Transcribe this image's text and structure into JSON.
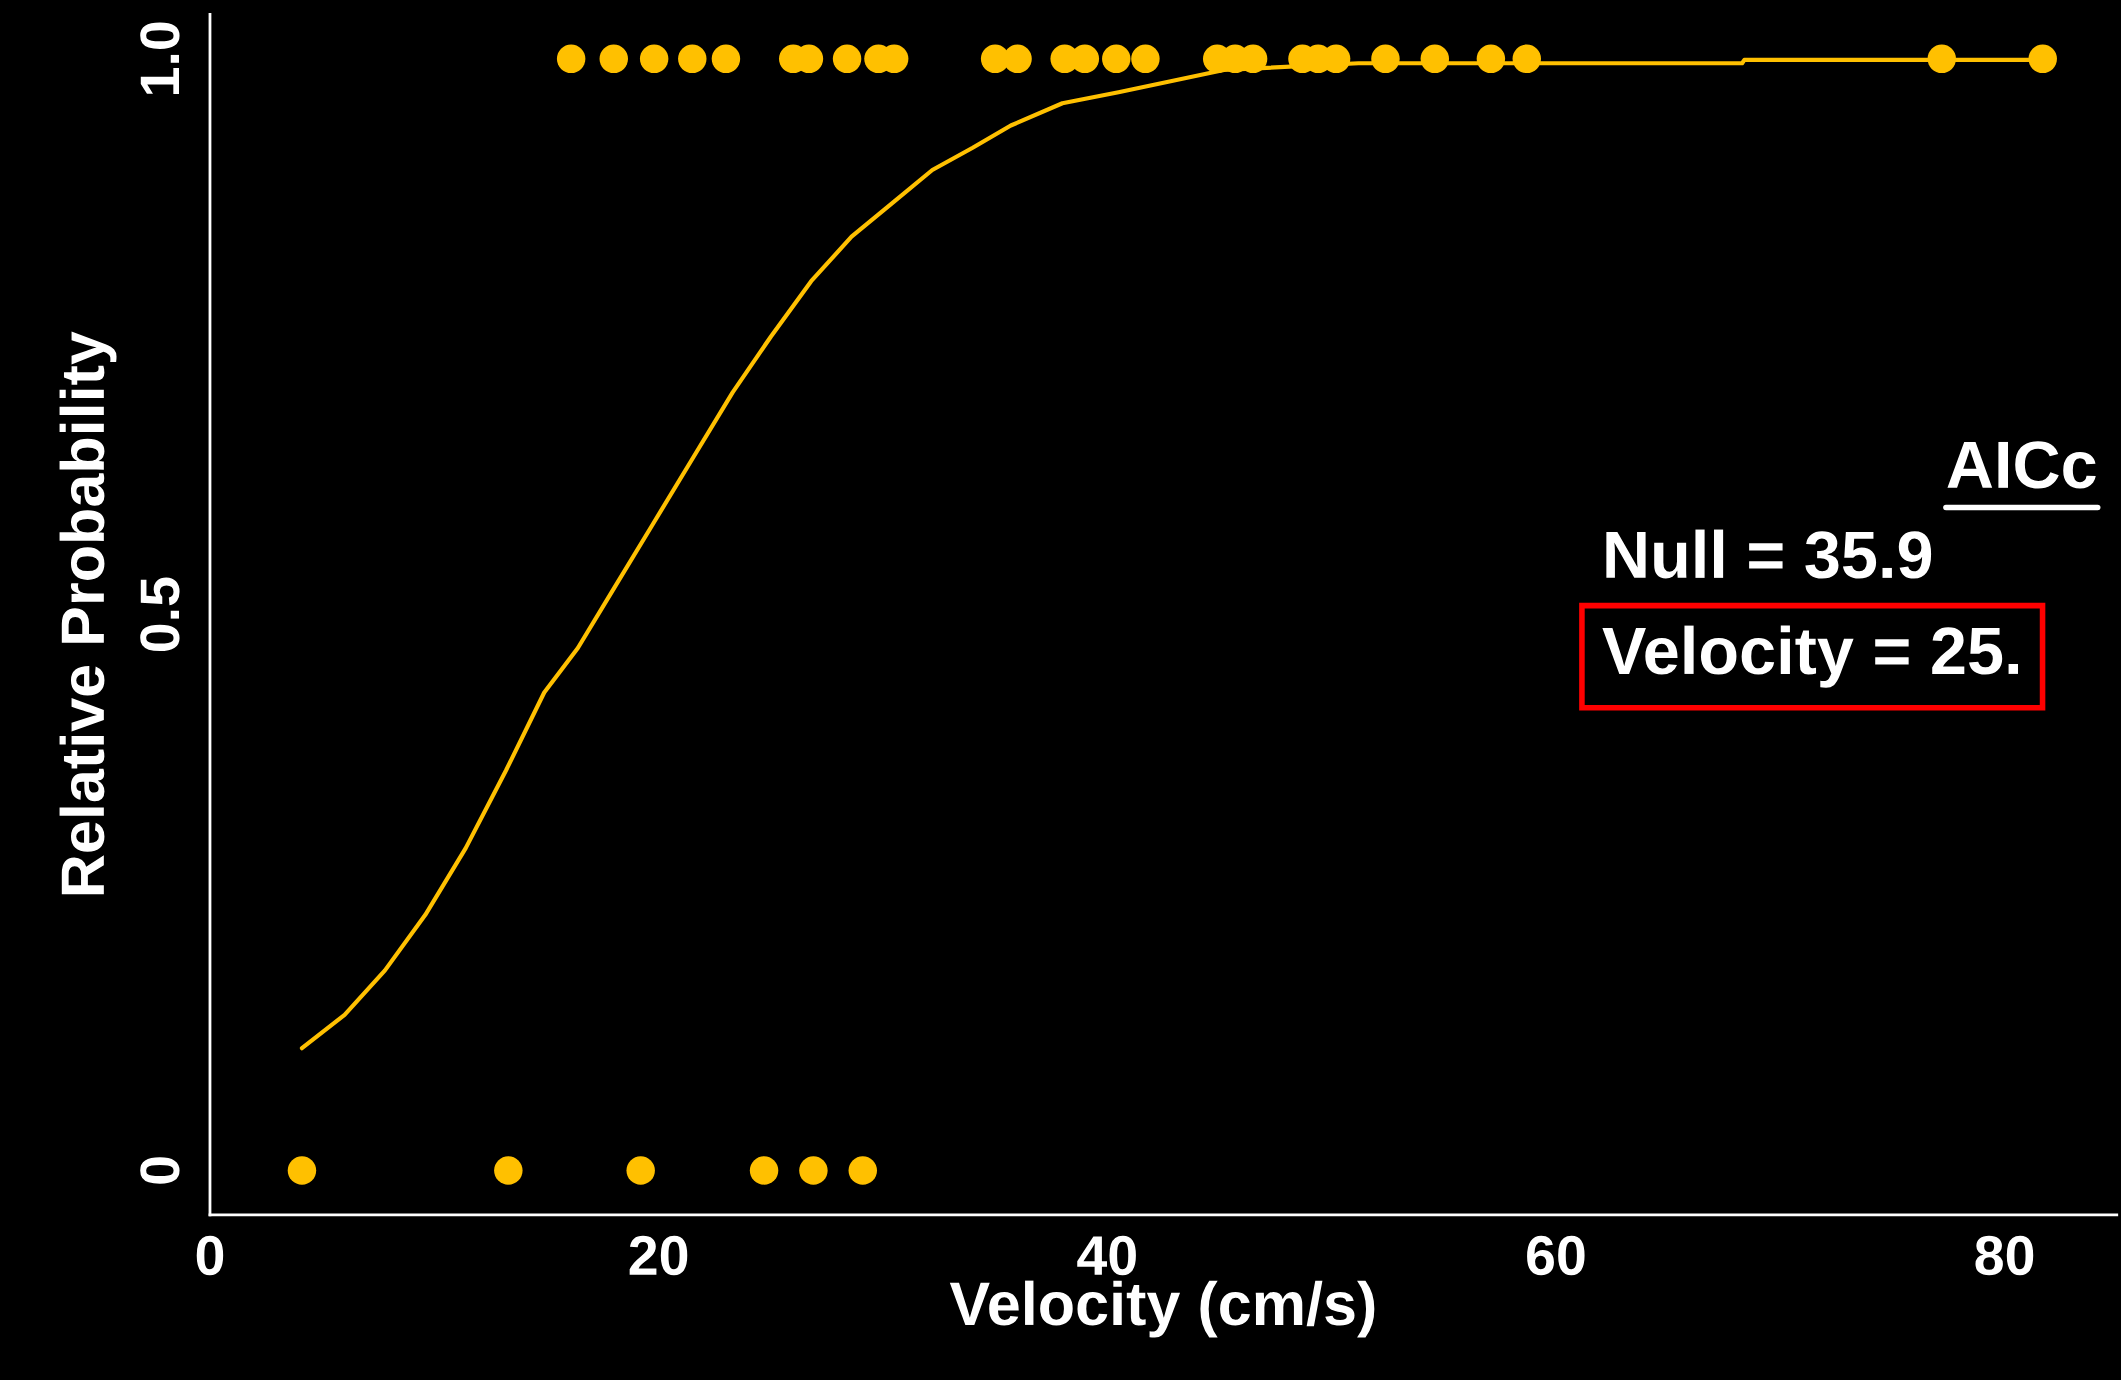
{
  "chart_data": {
    "type": "scatter",
    "xlabel": "Velocity (cm/s)",
    "ylabel": "Relative Probability",
    "xlim": [
      0,
      85
    ],
    "ylim": [
      -0.04,
      1.04
    ],
    "xticks": [
      0,
      20,
      40,
      60,
      80
    ],
    "yticks": [
      0,
      0.5,
      {
        "value": 1,
        "label": "1.0"
      }
    ],
    "grid": false,
    "legend": false,
    "series": [
      {
        "marker": "circle",
        "color": "#ffc000",
        "x": [
          4.1,
          13.3,
          19.2,
          24.7,
          26.9,
          29.1,
          16.1,
          18.0,
          19.8,
          21.5,
          23.0,
          26.0,
          26.7,
          28.4,
          29.8,
          30.5,
          35.0,
          36.0,
          38.1,
          39.0,
          40.4,
          41.7,
          44.9,
          45.7,
          46.5,
          48.7,
          49.4,
          50.2,
          52.4,
          54.6,
          57.1,
          58.7,
          77.2,
          81.7
        ],
        "values": [
          0,
          0,
          0,
          0,
          0,
          0,
          1,
          1,
          1,
          1,
          1,
          1,
          1,
          1,
          1,
          1,
          1,
          1,
          1,
          1,
          1,
          1,
          1,
          1,
          1,
          1,
          1,
          1,
          1,
          1,
          1,
          1,
          1,
          1
        ]
      },
      {
        "type": "line",
        "color": "#ffc000",
        "x": [
          4.1,
          6.0,
          7.8,
          9.6,
          11.4,
          13.2,
          14.9,
          16.4,
          17.9,
          19.7,
          21.5,
          23.3,
          25.0,
          26.8,
          28.6,
          30.4,
          32.2,
          34.0,
          35.7,
          38.0,
          40.5,
          45.2,
          51.2,
          68.3,
          68.4,
          81.7
        ],
        "values": [
          0.11,
          0.14,
          0.18,
          0.23,
          0.29,
          0.36,
          0.43,
          0.47,
          0.52,
          0.58,
          0.64,
          0.7,
          0.75,
          0.8,
          0.84,
          0.87,
          0.9,
          0.92,
          0.94,
          0.96,
          0.97,
          0.99,
          0.996,
          0.996,
          0.999,
          0.999
        ]
      }
    ],
    "annotations": [
      "AICc",
      "Null = 35.9",
      "Velocity = 25."
    ]
  }
}
